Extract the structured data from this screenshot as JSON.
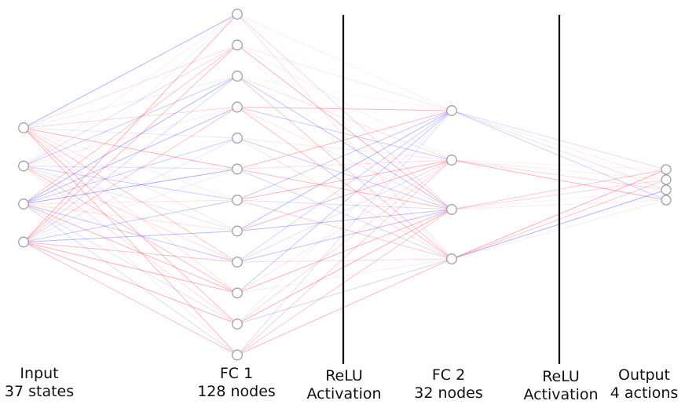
{
  "layers": [
    {
      "id": "input",
      "name": "Input",
      "detail": "37 states",
      "drawn_nodes": 4
    },
    {
      "id": "fc1",
      "name": "FC 1",
      "detail": "128 nodes",
      "drawn_nodes": 12
    },
    {
      "id": "relu1",
      "name": "ReLU",
      "detail": "Activation"
    },
    {
      "id": "fc2",
      "name": "FC 2",
      "detail": "32 nodes",
      "drawn_nodes": 4
    },
    {
      "id": "relu2",
      "name": "ReLU",
      "detail": "Activation"
    },
    {
      "id": "output",
      "name": "Output",
      "detail": "4 actions",
      "drawn_nodes": 4
    }
  ],
  "colors": {
    "positive_weight": "#ff6070",
    "negative_weight": "#5a5aff",
    "node_stroke": "#a0a0a0",
    "divider": "#000000"
  }
}
